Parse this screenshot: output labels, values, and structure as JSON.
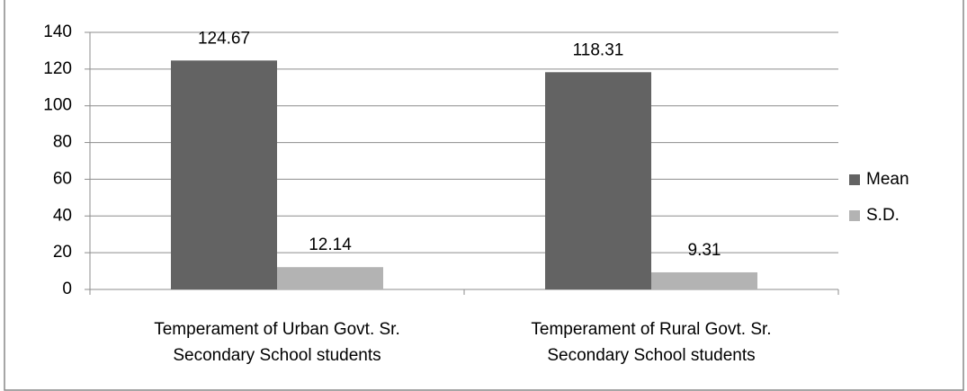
{
  "chart_data": {
    "type": "bar",
    "categories": [
      "Temperament of Urban Govt. Sr. Secondary School students",
      "Temperament of Rural Govt. Sr. Secondary School students"
    ],
    "series": [
      {
        "name": "Mean",
        "color": "#636363",
        "values": [
          124.67,
          118.31
        ]
      },
      {
        "name": "S.D.",
        "color": "#b3b3b3",
        "values": [
          12.14,
          9.31
        ]
      }
    ],
    "ylim": [
      0,
      140
    ],
    "yticks": [
      0,
      20,
      40,
      60,
      80,
      100,
      120,
      140
    ],
    "grid": true,
    "legend": "right"
  }
}
